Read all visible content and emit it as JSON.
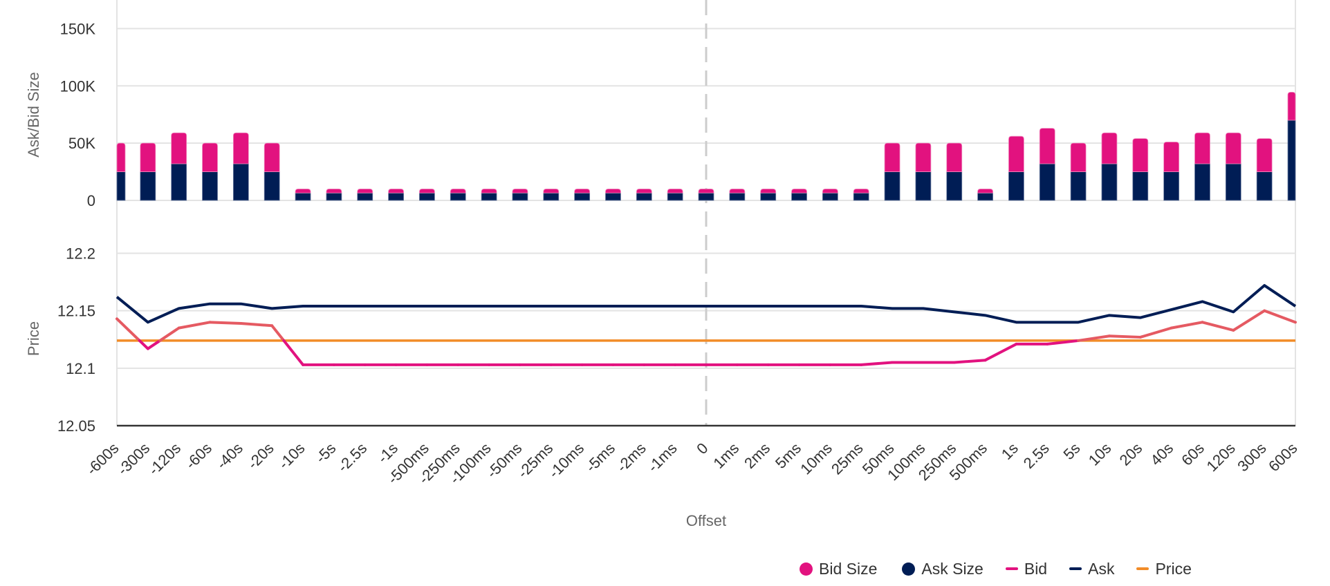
{
  "chart_data": {
    "type": "bar+line",
    "title": "",
    "xlabel": "Offset",
    "categories": [
      "-600s",
      "-300s",
      "-120s",
      "-60s",
      "-40s",
      "-20s",
      "-10s",
      "-5s",
      "-2.5s",
      "-1s",
      "-500ms",
      "-250ms",
      "-100ms",
      "-50ms",
      "-25ms",
      "-10ms",
      "-5ms",
      "-2ms",
      "-1ms",
      "0",
      "1ms",
      "2ms",
      "5ms",
      "10ms",
      "25ms",
      "50ms",
      "100ms",
      "250ms",
      "500ms",
      "1s",
      "2.5s",
      "5s",
      "10s",
      "20s",
      "40s",
      "60s",
      "120s",
      "300s",
      "600s"
    ],
    "reference_line": {
      "category": "0",
      "style": "dashed",
      "color": "#cccccc"
    },
    "panes": [
      {
        "name": "size",
        "ylabel": "Ask/Bid Size",
        "ylim": [
          0,
          175000
        ],
        "yticks": [
          0,
          50000,
          100000,
          150000
        ],
        "ytick_labels": [
          "0",
          "50K",
          "100K",
          "150K"
        ],
        "stacked": true,
        "series": [
          {
            "name": "Ask Size",
            "type": "bar",
            "color": "#001d55",
            "values": [
              25000,
              25000,
              32000,
              25000,
              32000,
              25000,
              6500,
              6500,
              6500,
              6500,
              6500,
              6500,
              6500,
              6500,
              6500,
              6500,
              6500,
              6500,
              6500,
              6500,
              6500,
              6500,
              6500,
              6500,
              6500,
              25000,
              25000,
              25000,
              6500,
              25000,
              32000,
              25000,
              32000,
              25000,
              25000,
              32000,
              32000,
              25000,
              70000
            ]
          },
          {
            "name": "Bid Size",
            "type": "bar",
            "color": "#e2127f",
            "values": [
              25000,
              25000,
              27000,
              25000,
              27000,
              25000,
              3500,
              3500,
              3500,
              3500,
              3500,
              3500,
              3500,
              3500,
              3500,
              3500,
              3500,
              3500,
              3500,
              3500,
              3500,
              3500,
              3500,
              3500,
              3500,
              25000,
              25000,
              25000,
              3500,
              31000,
              31000,
              25000,
              27000,
              29000,
              26000,
              27000,
              27000,
              29000,
              24500
            ]
          }
        ]
      },
      {
        "name": "price",
        "ylabel": "Price",
        "ylim": [
          12.05,
          12.24
        ],
        "yticks": [
          12.05,
          12.1,
          12.15,
          12.2
        ],
        "ytick_labels": [
          "12.05",
          "12.1",
          "12.15",
          "12.2"
        ],
        "series": [
          {
            "name": "Ask",
            "type": "line",
            "color": "#001d55",
            "values": [
              12.162,
              12.14,
              12.152,
              12.156,
              12.156,
              12.152,
              12.154,
              12.154,
              12.154,
              12.154,
              12.154,
              12.154,
              12.154,
              12.154,
              12.154,
              12.154,
              12.154,
              12.154,
              12.154,
              12.154,
              12.154,
              12.154,
              12.154,
              12.154,
              12.154,
              12.152,
              12.152,
              12.149,
              12.146,
              12.14,
              12.14,
              12.14,
              12.146,
              12.144,
              12.151,
              12.158,
              12.149,
              12.172,
              12.154
            ]
          },
          {
            "name": "Bid",
            "type": "line",
            "color": "#e2127f",
            "color_above_price": "#e55a62",
            "values": [
              12.143,
              12.117,
              12.135,
              12.14,
              12.139,
              12.137,
              12.103,
              12.103,
              12.103,
              12.103,
              12.103,
              12.103,
              12.103,
              12.103,
              12.103,
              12.103,
              12.103,
              12.103,
              12.103,
              12.103,
              12.103,
              12.103,
              12.103,
              12.103,
              12.103,
              12.105,
              12.105,
              12.105,
              12.107,
              12.121,
              12.121,
              12.124,
              12.128,
              12.127,
              12.135,
              12.14,
              12.133,
              12.15,
              12.14
            ]
          },
          {
            "name": "Price",
            "type": "line",
            "color": "#f28c28",
            "values": [
              12.124,
              12.124,
              12.124,
              12.124,
              12.124,
              12.124,
              12.124,
              12.124,
              12.124,
              12.124,
              12.124,
              12.124,
              12.124,
              12.124,
              12.124,
              12.124,
              12.124,
              12.124,
              12.124,
              12.124,
              12.124,
              12.124,
              12.124,
              12.124,
              12.124,
              12.124,
              12.124,
              12.124,
              12.124,
              12.124,
              12.124,
              12.124,
              12.124,
              12.124,
              12.124,
              12.124,
              12.124,
              12.124,
              12.124
            ]
          }
        ]
      }
    ],
    "grid": true,
    "legend": {
      "position": "bottom-right",
      "entries": [
        {
          "label": "Bid Size",
          "symbol": "dot",
          "color": "#e2127f"
        },
        {
          "label": "Ask Size",
          "symbol": "dot",
          "color": "#001d55"
        },
        {
          "label": "Bid",
          "symbol": "line",
          "color": "#e2127f"
        },
        {
          "label": "Ask",
          "symbol": "line",
          "color": "#001d55"
        },
        {
          "label": "Price",
          "symbol": "line",
          "color": "#f28c28"
        }
      ]
    }
  }
}
